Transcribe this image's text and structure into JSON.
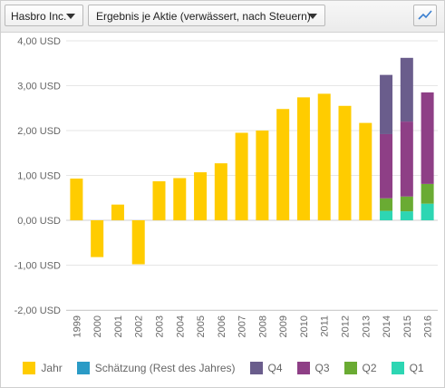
{
  "toolbar": {
    "company": "Hasbro Inc.",
    "metric": "Ergebnis je Aktie (verwässert, nach Steuern)",
    "chart_type_icon": "line-chart-icon"
  },
  "colors": {
    "Jahr": "#ffcc00",
    "Schätzung (Rest des Jahres)": "#2b9bc6",
    "Q4": "#6a5d8c",
    "Q3": "#8e3f86",
    "Q2": "#6aab33",
    "Q1": "#2dd6b3"
  },
  "chart_data": {
    "type": "bar",
    "ylim": [
      -2.0,
      4.0
    ],
    "yticks": [
      "4,00 USD",
      "3,00 USD",
      "2,00 USD",
      "1,00 USD",
      "0,00 USD",
      "-1,00 USD",
      "-2,00 USD"
    ],
    "ytick_values": [
      4,
      3,
      2,
      1,
      0,
      -1,
      -2
    ],
    "grid": true,
    "legend_position": "bottom",
    "categories": [
      "1999",
      "2000",
      "2001",
      "2002",
      "2003",
      "2004",
      "2005",
      "2006",
      "2007",
      "2008",
      "2009",
      "2010",
      "2011",
      "2012",
      "2013",
      "2014",
      "2015",
      "2016"
    ],
    "series": [
      {
        "name": "Jahr",
        "values": [
          0.93,
          -0.82,
          0.35,
          -0.98,
          0.87,
          0.94,
          1.07,
          1.27,
          1.95,
          2.0,
          2.48,
          2.74,
          2.82,
          2.55,
          2.17,
          null,
          null,
          null
        ]
      },
      {
        "name": "Schätzung (Rest des Jahres)",
        "values": [
          null,
          null,
          null,
          null,
          null,
          null,
          null,
          null,
          null,
          null,
          null,
          null,
          null,
          null,
          null,
          null,
          null,
          null
        ]
      },
      {
        "name": "Q1",
        "values": [
          null,
          null,
          null,
          null,
          null,
          null,
          null,
          null,
          null,
          null,
          null,
          null,
          null,
          null,
          null,
          0.21,
          0.2,
          0.37
        ]
      },
      {
        "name": "Q2",
        "values": [
          null,
          null,
          null,
          null,
          null,
          null,
          null,
          null,
          null,
          null,
          null,
          null,
          null,
          null,
          null,
          0.28,
          0.33,
          0.44
        ]
      },
      {
        "name": "Q3",
        "values": [
          null,
          null,
          null,
          null,
          null,
          null,
          null,
          null,
          null,
          null,
          null,
          null,
          null,
          null,
          null,
          1.43,
          1.67,
          2.04
        ]
      },
      {
        "name": "Q4",
        "values": [
          null,
          null,
          null,
          null,
          null,
          null,
          null,
          null,
          null,
          null,
          null,
          null,
          null,
          null,
          null,
          1.32,
          1.42,
          null
        ]
      }
    ]
  },
  "legend": [
    "Jahr",
    "Schätzung (Rest des Jahres)",
    "Q4",
    "Q3",
    "Q2",
    "Q1"
  ]
}
